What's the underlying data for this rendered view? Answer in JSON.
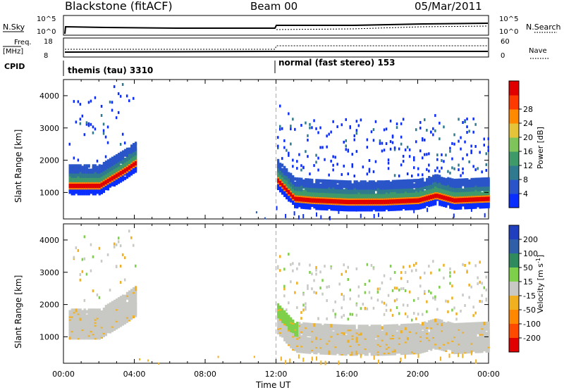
{
  "header": {
    "title": "Blackstone (fitACF)",
    "beam": "Beam 00",
    "date": "05/Mar/2011"
  },
  "top_panels": {
    "nsky_label": "N.Sky",
    "nsky_ticks": [
      "10^5",
      "10^0"
    ],
    "nsearch_label": "N.Search",
    "nsearch_ticks": [
      "10^5",
      "10^0"
    ],
    "freq_label": "Freq.",
    "freq_unit": "[MHz]",
    "freq_ticks": [
      "18",
      "8"
    ],
    "nave_label": "Nave",
    "nave_ticks": [
      "60",
      "0"
    ],
    "cpid_label": "CPID",
    "modes": [
      {
        "name": "themis (tau) 3310",
        "start_hour": 0
      },
      {
        "name": "normal (fast stereo) 153",
        "start_hour": 12
      }
    ]
  },
  "chart_data": [
    {
      "type": "heatmap",
      "title": "Power",
      "ylabel": "Slant Range [km]",
      "xlabel": "Time UT",
      "xlim": [
        0,
        24
      ],
      "ylim": [
        180,
        4500
      ],
      "x_ticks": [
        "00:00",
        "04:00",
        "08:00",
        "12:00",
        "16:00",
        "20:00",
        "00:00"
      ],
      "y_ticks": [
        1000,
        2000,
        3000,
        4000
      ],
      "colorbar": {
        "label": "Power [dB]",
        "ticks": [
          "4",
          "8",
          "12",
          "16",
          "20",
          "24",
          "28"
        ],
        "colors": [
          "#0a2eff",
          "#2a55c8",
          "#2f7a8e",
          "#3f9a6a",
          "#7fc45a",
          "#e6c43a",
          "#ff8a00",
          "#ff3a00",
          "#e00000"
        ]
      },
      "echo_bands": [
        {
          "description": "main band near range",
          "hours": [
            0.3,
            2.0,
            3.5,
            4.0,
            12.0,
            13.0,
            14.0,
            16.0,
            18.0,
            20.0,
            21.0,
            22.0,
            24.0
          ],
          "range_km": [
            1300,
            1300,
            1800,
            2000,
            1500,
            900,
            850,
            800,
            800,
            850,
            1000,
            850,
            900
          ]
        }
      ],
      "marker_hour": 12
    },
    {
      "type": "heatmap",
      "title": "Velocity",
      "ylabel": "Slant Range [km]",
      "xlabel": "Time UT",
      "xlim": [
        0,
        24
      ],
      "ylim": [
        180,
        4500
      ],
      "x_ticks": [
        "00:00",
        "04:00",
        "08:00",
        "12:00",
        "16:00",
        "20:00",
        "00:00"
      ],
      "y_ticks": [
        1000,
        2000,
        3000,
        4000
      ],
      "colorbar": {
        "label": "Velocity [m s",
        "label_sup": "-1",
        "label_end": "]",
        "ticks": [
          "200",
          "100",
          "50",
          "15",
          "-15",
          "-50",
          "-100",
          "-200"
        ],
        "colors": [
          "#1f3fbf",
          "#2f5fa8",
          "#2f8a5e",
          "#7ed04a",
          "#c8c8c4",
          "#f0b020",
          "#ff8800",
          "#ff4a00",
          "#e00000"
        ]
      },
      "marker_hour": 12
    }
  ],
  "axis": {
    "xlabel": "Time UT"
  }
}
